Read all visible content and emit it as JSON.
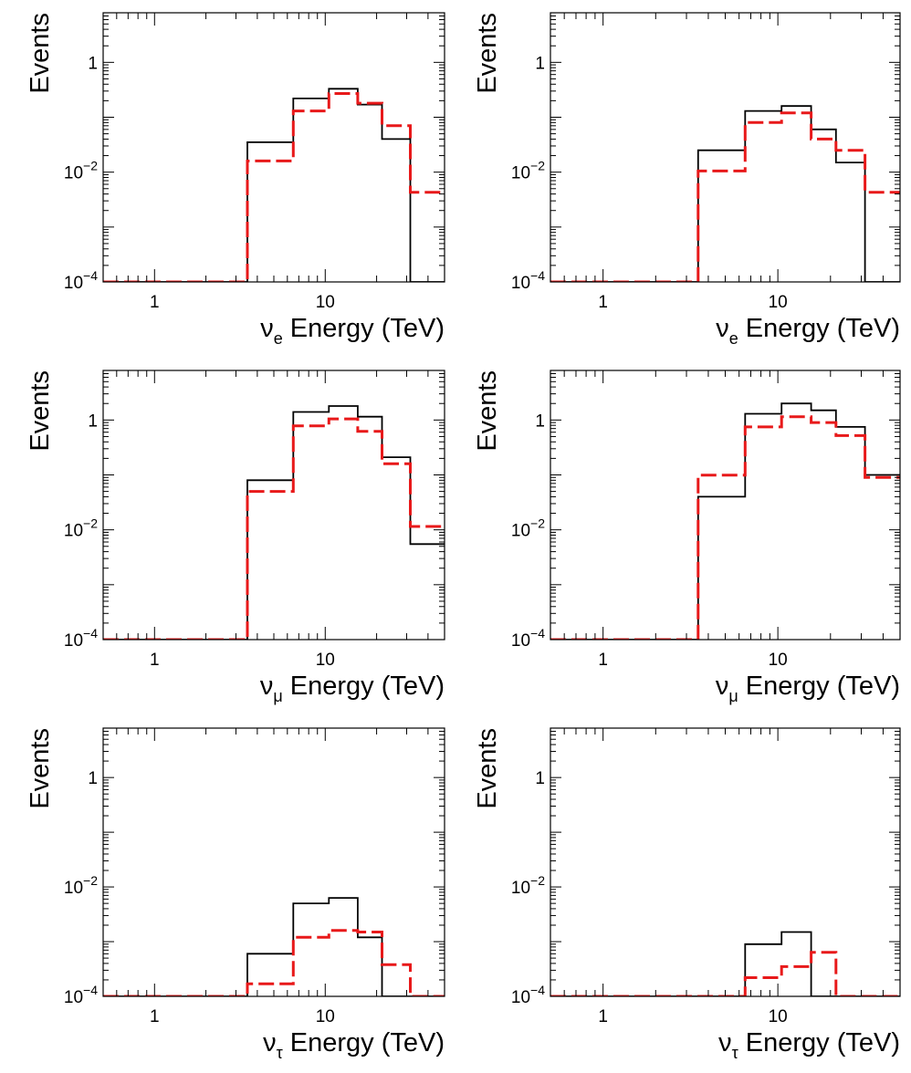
{
  "colors": {
    "solid_series": "#000000",
    "dashed_series": "#e8191a",
    "frame": "#000000"
  },
  "common": {
    "ylabel": "Events",
    "xlabel_suffix": " Energy (TeV)",
    "nu_symbol": "ν",
    "x_scale": "log",
    "y_scale": "log",
    "xlim": [
      0.5,
      50
    ],
    "ylim": [
      0.0001,
      8
    ],
    "bin_edges": [
      0.5,
      3.5,
      6.5,
      10.5,
      15.5,
      21.5,
      31.5,
      50
    ],
    "x_ticks": [
      {
        "value": 1,
        "label": "1"
      },
      {
        "value": 10,
        "label": "10"
      }
    ],
    "y_ticks": [
      {
        "value": 0.0001,
        "base": "10",
        "exp": "−4"
      },
      {
        "value": 0.01,
        "base": "10",
        "exp": "−2"
      },
      {
        "value": 1,
        "base": "1",
        "exp": ""
      }
    ]
  },
  "chart_data": [
    {
      "type": "bar",
      "flavor_sub": "e",
      "series": [
        {
          "name": "solid",
          "style": "solid",
          "values": [
            0.0001,
            0.035,
            0.22,
            0.33,
            0.17,
            0.04,
            0.0001
          ]
        },
        {
          "name": "dashed",
          "style": "dashed",
          "values": [
            0.0001,
            0.016,
            0.13,
            0.27,
            0.18,
            0.07,
            0.0043
          ]
        }
      ]
    },
    {
      "type": "bar",
      "flavor_sub": "e",
      "series": [
        {
          "name": "solid",
          "style": "solid",
          "values": [
            0.0001,
            0.025,
            0.13,
            0.16,
            0.06,
            0.015,
            0.0001
          ]
        },
        {
          "name": "dashed",
          "style": "dashed",
          "values": [
            0.0001,
            0.0105,
            0.08,
            0.12,
            0.04,
            0.025,
            0.0043
          ]
        }
      ]
    },
    {
      "type": "bar",
      "flavor_sub": "μ",
      "series": [
        {
          "name": "solid",
          "style": "solid",
          "values": [
            0.0001,
            0.08,
            1.4,
            1.8,
            1.15,
            0.21,
            0.0055
          ]
        },
        {
          "name": "dashed",
          "style": "dashed",
          "values": [
            0.0001,
            0.05,
            0.78,
            1.05,
            0.62,
            0.16,
            0.0115
          ]
        }
      ]
    },
    {
      "type": "bar",
      "flavor_sub": "μ",
      "series": [
        {
          "name": "solid",
          "style": "solid",
          "values": [
            0.0001,
            0.04,
            1.3,
            2.0,
            1.5,
            0.75,
            0.1
          ]
        },
        {
          "name": "dashed",
          "style": "dashed",
          "values": [
            0.0001,
            0.099,
            0.75,
            1.15,
            0.9,
            0.52,
            0.09
          ]
        }
      ]
    },
    {
      "type": "bar",
      "flavor_sub": "τ",
      "series": [
        {
          "name": "solid",
          "style": "solid",
          "values": [
            0.0001,
            0.0006,
            0.005,
            0.0063,
            0.0012,
            0.0001,
            0.0001
          ]
        },
        {
          "name": "dashed",
          "style": "dashed",
          "values": [
            0.0001,
            0.00017,
            0.0012,
            0.0016,
            0.0015,
            0.00038,
            0.0001
          ]
        }
      ]
    },
    {
      "type": "bar",
      "flavor_sub": "τ",
      "series": [
        {
          "name": "solid",
          "style": "solid",
          "values": [
            0.0001,
            0.0001,
            0.0009,
            0.0015,
            0.0001,
            0.0001,
            0.0001
          ]
        },
        {
          "name": "dashed",
          "style": "dashed",
          "values": [
            0.0001,
            0.0001,
            0.00022,
            0.00035,
            0.00064,
            0.0001,
            0.0001
          ]
        }
      ]
    }
  ]
}
